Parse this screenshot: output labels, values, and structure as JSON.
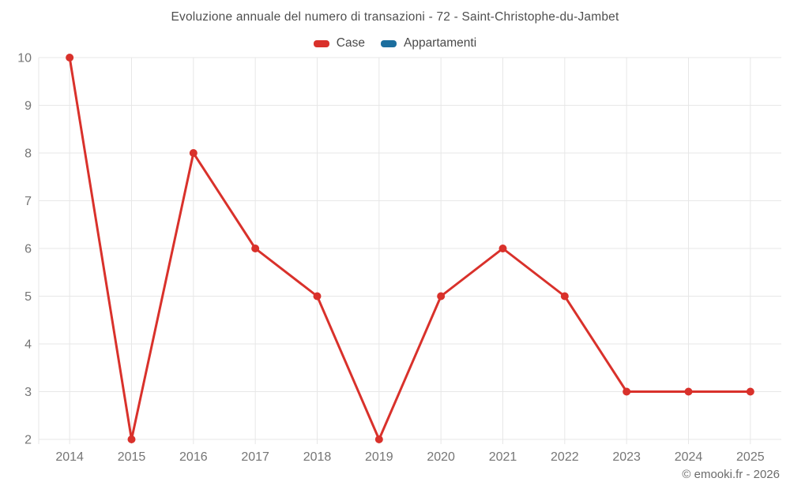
{
  "chart_data": {
    "type": "line",
    "title": "Evoluzione annuale del numero di transazioni - 72 - Saint-Christophe-du-Jambet",
    "categories": [
      "2014",
      "2015",
      "2016",
      "2017",
      "2018",
      "2019",
      "2020",
      "2021",
      "2022",
      "2023",
      "2024",
      "2025"
    ],
    "series": [
      {
        "name": "Case",
        "color": "#d9312b",
        "values": [
          10,
          2,
          8,
          6,
          5,
          2,
          5,
          6,
          5,
          3,
          3,
          3
        ]
      },
      {
        "name": "Appartamenti",
        "color": "#1c6e9e",
        "values": []
      }
    ],
    "xlabel": "",
    "ylabel": "",
    "ylim": [
      2,
      10
    ],
    "yticks": [
      2,
      3,
      4,
      5,
      6,
      7,
      8,
      9,
      10
    ],
    "grid": true,
    "legend_position": "top"
  },
  "footer": {
    "credit": "© emooki.fr - 2026"
  },
  "colors": {
    "grid_line": "#e7e7e7",
    "axis_text": "#757575",
    "title_text": "#4f4f4f",
    "legend_text": "#4a4a4a",
    "footer_text": "#6b6b6b",
    "background": "#ffffff"
  }
}
